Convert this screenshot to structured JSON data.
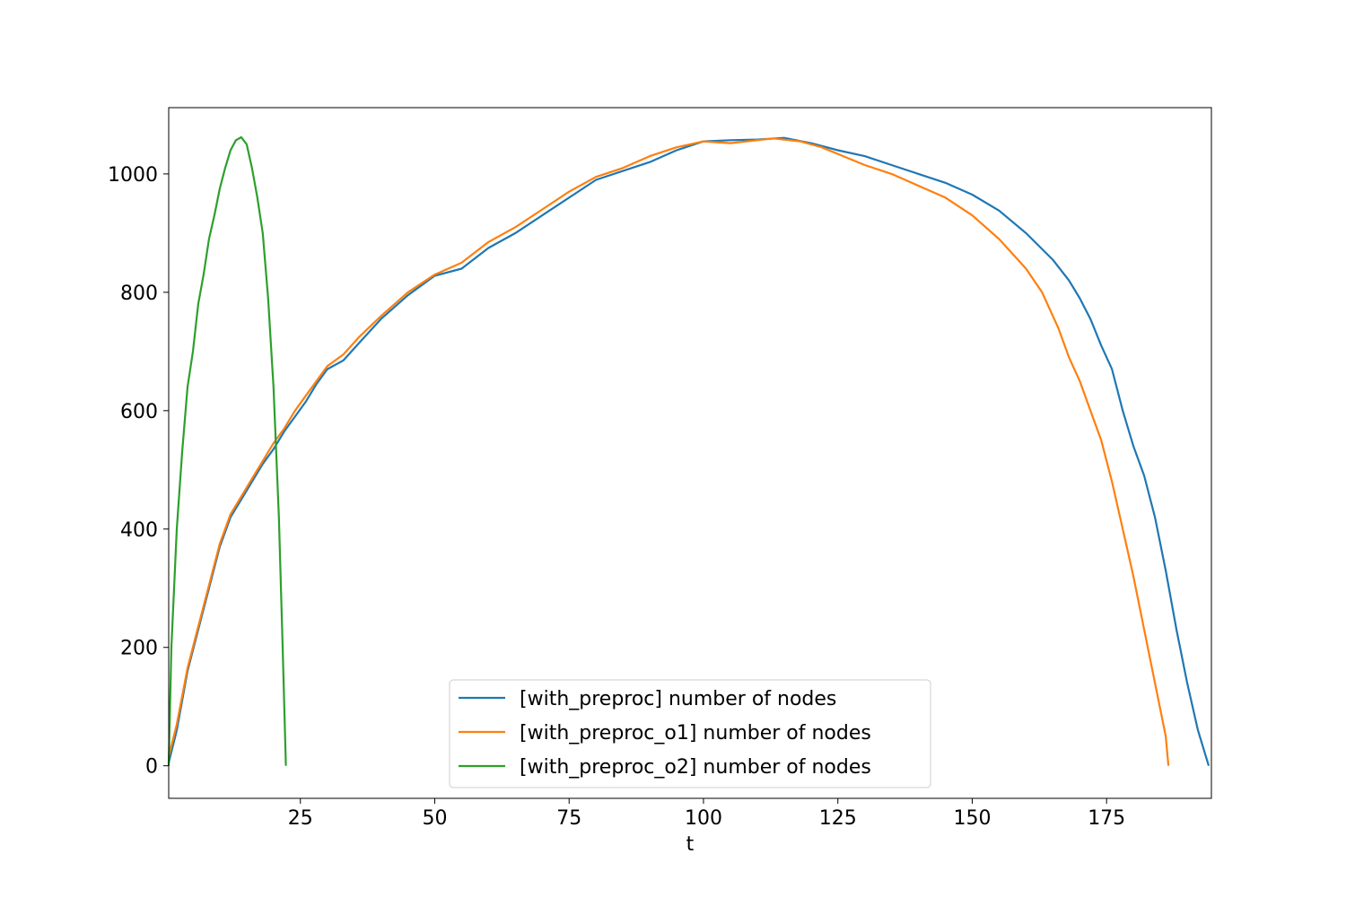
{
  "chart_data": {
    "type": "line",
    "title": "",
    "xlabel": "t",
    "ylabel": "",
    "xlim": [
      0.5,
      194.5
    ],
    "ylim": [
      -55,
      1112
    ],
    "xticks": [
      25,
      50,
      75,
      100,
      125,
      150,
      175
    ],
    "yticks": [
      0,
      200,
      400,
      600,
      800,
      1000
    ],
    "grid": false,
    "legend_position": "bottom-center",
    "series": [
      {
        "name": "[with_preproc] number of nodes",
        "color": "#1f77b4",
        "points": [
          [
            0.5,
            5
          ],
          [
            2,
            60
          ],
          [
            4,
            160
          ],
          [
            6,
            230
          ],
          [
            8,
            300
          ],
          [
            10,
            370
          ],
          [
            12,
            420
          ],
          [
            14,
            450
          ],
          [
            16,
            480
          ],
          [
            18,
            510
          ],
          [
            20,
            535
          ],
          [
            22,
            565
          ],
          [
            24,
            590
          ],
          [
            26,
            615
          ],
          [
            28,
            645
          ],
          [
            30,
            670
          ],
          [
            33,
            685
          ],
          [
            36,
            715
          ],
          [
            40,
            755
          ],
          [
            45,
            795
          ],
          [
            50,
            828
          ],
          [
            55,
            840
          ],
          [
            60,
            875
          ],
          [
            65,
            900
          ],
          [
            70,
            930
          ],
          [
            75,
            960
          ],
          [
            80,
            990
          ],
          [
            85,
            1005
          ],
          [
            90,
            1020
          ],
          [
            95,
            1040
          ],
          [
            100,
            1055
          ],
          [
            105,
            1057
          ],
          [
            110,
            1058
          ],
          [
            115,
            1061
          ],
          [
            120,
            1052
          ],
          [
            125,
            1040
          ],
          [
            130,
            1030
          ],
          [
            135,
            1015
          ],
          [
            140,
            1000
          ],
          [
            145,
            985
          ],
          [
            150,
            965
          ],
          [
            155,
            938
          ],
          [
            160,
            900
          ],
          [
            165,
            855
          ],
          [
            168,
            820
          ],
          [
            170,
            790
          ],
          [
            172,
            755
          ],
          [
            174,
            710
          ],
          [
            176,
            670
          ],
          [
            178,
            600
          ],
          [
            180,
            540
          ],
          [
            182,
            490
          ],
          [
            184,
            420
          ],
          [
            186,
            330
          ],
          [
            188,
            230
          ],
          [
            190,
            140
          ],
          [
            192,
            60
          ],
          [
            194,
            0
          ]
        ]
      },
      {
        "name": "[with_preproc_o1] number of nodes",
        "color": "#ff7f0e",
        "points": [
          [
            0.5,
            15
          ],
          [
            2,
            70
          ],
          [
            4,
            165
          ],
          [
            6,
            235
          ],
          [
            8,
            305
          ],
          [
            10,
            375
          ],
          [
            12,
            425
          ],
          [
            14,
            455
          ],
          [
            16,
            485
          ],
          [
            18,
            515
          ],
          [
            20,
            545
          ],
          [
            22,
            570
          ],
          [
            24,
            600
          ],
          [
            26,
            625
          ],
          [
            28,
            650
          ],
          [
            30,
            675
          ],
          [
            33,
            695
          ],
          [
            36,
            725
          ],
          [
            40,
            760
          ],
          [
            45,
            800
          ],
          [
            50,
            830
          ],
          [
            55,
            850
          ],
          [
            60,
            885
          ],
          [
            65,
            910
          ],
          [
            70,
            940
          ],
          [
            75,
            970
          ],
          [
            80,
            995
          ],
          [
            85,
            1010
          ],
          [
            90,
            1030
          ],
          [
            95,
            1045
          ],
          [
            100,
            1055
          ],
          [
            105,
            1052
          ],
          [
            110,
            1057
          ],
          [
            113,
            1060
          ],
          [
            118,
            1055
          ],
          [
            122,
            1045
          ],
          [
            126,
            1030
          ],
          [
            130,
            1015
          ],
          [
            135,
            1000
          ],
          [
            140,
            980
          ],
          [
            145,
            960
          ],
          [
            150,
            930
          ],
          [
            155,
            890
          ],
          [
            160,
            840
          ],
          [
            163,
            800
          ],
          [
            166,
            740
          ],
          [
            168,
            690
          ],
          [
            170,
            650
          ],
          [
            172,
            600
          ],
          [
            174,
            550
          ],
          [
            176,
            480
          ],
          [
            178,
            400
          ],
          [
            180,
            320
          ],
          [
            182,
            230
          ],
          [
            184,
            140
          ],
          [
            186,
            50
          ],
          [
            186.5,
            0
          ]
        ]
      },
      {
        "name": "[with_preproc_o2] number of nodes",
        "color": "#2ca02c",
        "points": [
          [
            0.5,
            0
          ],
          [
            1,
            200
          ],
          [
            2,
            400
          ],
          [
            3,
            530
          ],
          [
            4,
            640
          ],
          [
            5,
            700
          ],
          [
            6,
            780
          ],
          [
            7,
            830
          ],
          [
            8,
            890
          ],
          [
            9,
            930
          ],
          [
            10,
            975
          ],
          [
            11,
            1010
          ],
          [
            12,
            1040
          ],
          [
            13,
            1057
          ],
          [
            14,
            1062
          ],
          [
            15,
            1050
          ],
          [
            16,
            1010
          ],
          [
            17,
            960
          ],
          [
            18,
            900
          ],
          [
            19,
            790
          ],
          [
            20,
            640
          ],
          [
            21,
            420
          ],
          [
            21.7,
            200
          ],
          [
            22.3,
            0
          ]
        ]
      }
    ]
  }
}
